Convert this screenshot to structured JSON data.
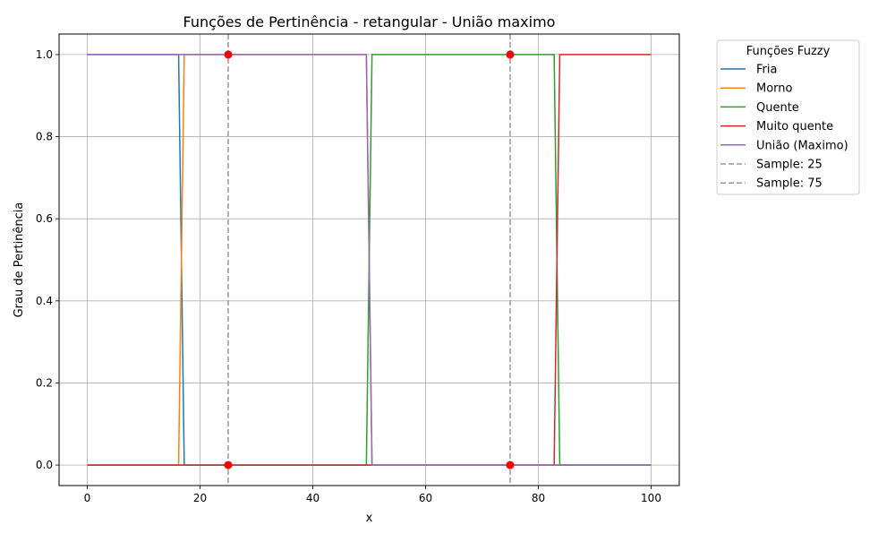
{
  "chart_data": {
    "type": "line",
    "title": "Funções de Pertinência - retangular - União maximo",
    "xlabel": "x",
    "ylabel": "Grau de Pertinência",
    "xlim": [
      -5,
      105
    ],
    "ylim": [
      -0.05,
      1.05
    ],
    "xticks": [
      0,
      20,
      40,
      60,
      80,
      100
    ],
    "xtick_labels": [
      "0",
      "20",
      "40",
      "60",
      "80",
      "100"
    ],
    "yticks": [
      0.0,
      0.2,
      0.4,
      0.6,
      0.8,
      1.0
    ],
    "ytick_labels": [
      "0.0",
      "0.2",
      "0.4",
      "0.6",
      "0.8",
      "1.0"
    ],
    "grid": true,
    "legend_title": "Funções Fuzzy",
    "legend_placement": "outside right, top",
    "series": [
      {
        "name": "Fria",
        "color": "#1f77b4",
        "style": "solid",
        "x": [
          0,
          16.2,
          17.2,
          100
        ],
        "y": [
          1,
          1,
          0,
          0
        ]
      },
      {
        "name": "Morno",
        "color": "#ff7f0e",
        "style": "solid",
        "x": [
          0,
          16.2,
          17.2,
          49.5,
          50.5,
          100
        ],
        "y": [
          0,
          0,
          1,
          1,
          0,
          0
        ]
      },
      {
        "name": "Quente",
        "color": "#2ca02c",
        "style": "solid",
        "x": [
          0,
          49.5,
          50.5,
          82.8,
          83.8,
          100
        ],
        "y": [
          0,
          0,
          1,
          1,
          0,
          0
        ]
      },
      {
        "name": "Muito quente",
        "color": "#d62728",
        "style": "solid",
        "x": [
          0,
          82.8,
          83.8,
          100
        ],
        "y": [
          0,
          0,
          1,
          1
        ]
      },
      {
        "name": "União (Maximo)",
        "color": "#9467bd",
        "style": "solid",
        "x": [
          0,
          49.5,
          50.5,
          100
        ],
        "y": [
          1,
          1,
          0,
          0
        ]
      },
      {
        "name": "Sample: 25",
        "color": "#999999",
        "style": "dashed",
        "vline": 25
      },
      {
        "name": "Sample: 75",
        "color": "#999999",
        "style": "dashed",
        "vline": 75
      }
    ],
    "markers": {
      "color": "#ff0000",
      "points": [
        {
          "x": 25,
          "y": 1
        },
        {
          "x": 25,
          "y": 0
        },
        {
          "x": 75,
          "y": 1
        },
        {
          "x": 75,
          "y": 0
        }
      ]
    }
  }
}
